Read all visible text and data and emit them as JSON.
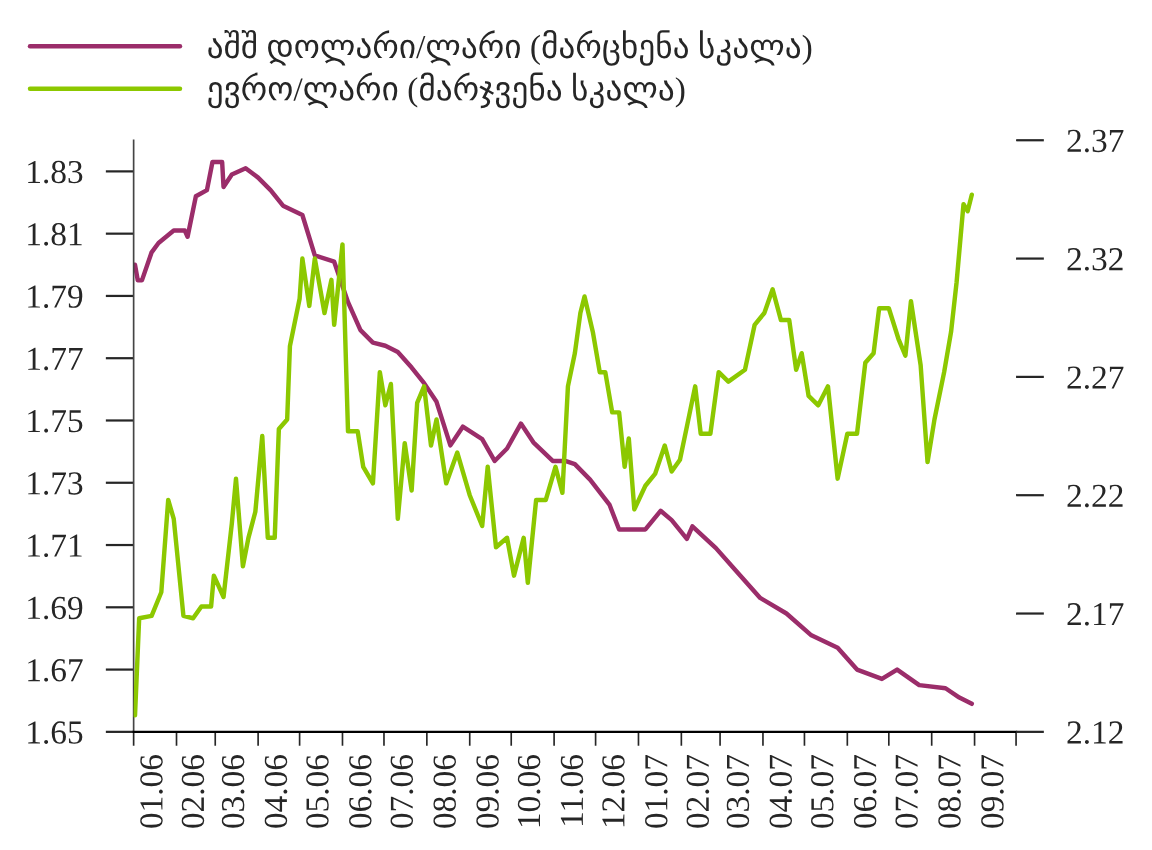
{
  "chart_data": {
    "type": "line",
    "legend": "top left",
    "xlim": [
      "2006-01-01",
      "2007-10-01"
    ],
    "xticks": [
      {
        "value": "2006-01-01",
        "label": null
      },
      {
        "value": "2006-01-16",
        "label": "01.06"
      },
      {
        "value": "2006-02-01",
        "label": null
      },
      {
        "value": "2006-02-15",
        "label": "02.06"
      },
      {
        "value": "2006-03-01",
        "label": null
      },
      {
        "value": "2006-03-16",
        "label": "03.06"
      },
      {
        "value": "2006-04-01",
        "label": null
      },
      {
        "value": "2006-04-16",
        "label": "04.06"
      },
      {
        "value": "2006-05-01",
        "label": null
      },
      {
        "value": "2006-05-16",
        "label": "05.06"
      },
      {
        "value": "2006-06-01",
        "label": null
      },
      {
        "value": "2006-06-16",
        "label": "06.06"
      },
      {
        "value": "2006-07-01",
        "label": null
      },
      {
        "value": "2006-07-16",
        "label": "07.06"
      },
      {
        "value": "2006-08-01",
        "label": null
      },
      {
        "value": "2006-08-16",
        "label": "08.06"
      },
      {
        "value": "2006-09-01",
        "label": null
      },
      {
        "value": "2006-09-16",
        "label": "09.06"
      },
      {
        "value": "2006-10-01",
        "label": null
      },
      {
        "value": "2006-10-16",
        "label": "10.06"
      },
      {
        "value": "2006-11-01",
        "label": null
      },
      {
        "value": "2006-11-16",
        "label": "11.06"
      },
      {
        "value": "2006-12-01",
        "label": null
      },
      {
        "value": "2006-12-16",
        "label": "12.06"
      },
      {
        "value": "2007-01-01",
        "label": null
      },
      {
        "value": "2007-01-16",
        "label": "01.07"
      },
      {
        "value": "2007-02-01",
        "label": null
      },
      {
        "value": "2007-02-15",
        "label": "02.07"
      },
      {
        "value": "2007-03-01",
        "label": null
      },
      {
        "value": "2007-03-16",
        "label": "03.07"
      },
      {
        "value": "2007-04-01",
        "label": null
      },
      {
        "value": "2007-04-16",
        "label": "04.07"
      },
      {
        "value": "2007-05-01",
        "label": null
      },
      {
        "value": "2007-05-16",
        "label": "05.07"
      },
      {
        "value": "2007-06-01",
        "label": null
      },
      {
        "value": "2007-06-16",
        "label": "06.07"
      },
      {
        "value": "2007-07-01",
        "label": null
      },
      {
        "value": "2007-07-16",
        "label": "07.07"
      },
      {
        "value": "2007-08-01",
        "label": null
      },
      {
        "value": "2007-08-16",
        "label": "08.07"
      },
      {
        "value": "2007-09-01",
        "label": null
      },
      {
        "value": "2007-09-16",
        "label": "09.07"
      },
      {
        "value": "2007-10-01",
        "label": null
      }
    ],
    "ylim": [
      1.65,
      1.84
    ],
    "yticks": [
      1.65,
      1.67,
      1.69,
      1.71,
      1.73,
      1.75,
      1.77,
      1.79,
      1.81,
      1.83
    ],
    "y2lim": [
      2.12,
      2.37
    ],
    "y2ticks": [
      2.12,
      2.17,
      2.22,
      2.27,
      2.32,
      2.37
    ],
    "series": [
      {
        "name": "აშშ დოლარი/ლარი (მარცხენა სკალა)",
        "color": "#9b2d6a",
        "x": [
          "2006-01-02",
          "2006-01-04",
          "2006-01-07",
          "2006-01-14",
          "2006-01-19",
          "2006-01-30",
          "2006-02-07",
          "2006-02-09",
          "2006-02-15",
          "2006-02-23",
          "2006-02-27",
          "2006-03-06",
          "2006-03-07",
          "2006-03-13",
          "2006-03-23",
          "2006-04-01",
          "2006-04-10",
          "2006-04-19",
          "2006-05-03",
          "2006-05-12",
          "2006-05-26",
          "2006-06-05",
          "2006-06-14",
          "2006-06-23",
          "2006-07-02",
          "2006-07-11",
          "2006-07-21",
          "2006-07-30",
          "2006-08-08",
          "2006-08-18",
          "2006-08-27",
          "2006-09-10",
          "2006-09-19",
          "2006-09-28",
          "2006-10-08",
          "2006-10-17",
          "2006-10-31",
          "2006-11-09",
          "2006-11-16",
          "2006-11-27",
          "2006-12-11",
          "2006-12-18",
          "2007-01-06",
          "2007-01-17",
          "2007-01-25",
          "2007-02-05",
          "2007-02-09",
          "2007-02-26",
          "2007-03-12",
          "2007-03-30",
          "2007-04-18",
          "2007-05-06",
          "2007-05-25",
          "2007-06-08",
          "2007-06-26",
          "2007-07-07",
          "2007-07-23",
          "2007-08-11",
          "2007-08-21",
          "2007-08-30"
        ],
        "values": [
          1.8,
          1.795,
          1.795,
          1.804,
          1.807,
          1.811,
          1.811,
          1.809,
          1.822,
          1.824,
          1.833,
          1.833,
          1.825,
          1.829,
          1.831,
          1.828,
          1.824,
          1.819,
          1.816,
          1.803,
          1.801,
          1.788,
          1.779,
          1.775,
          1.774,
          1.772,
          1.767,
          1.762,
          1.756,
          1.742,
          1.748,
          1.744,
          1.737,
          1.741,
          1.749,
          1.743,
          1.737,
          1.737,
          1.736,
          1.731,
          1.723,
          1.715,
          1.715,
          1.721,
          1.718,
          1.712,
          1.716,
          1.709,
          1.702,
          1.693,
          1.688,
          1.681,
          1.677,
          1.67,
          1.667,
          1.67,
          1.665,
          1.664,
          1.661,
          1.659
        ]
      },
      {
        "name": "ევრო/ლარი (მარჯვენა სკალა)",
        "color": "#8cc800",
        "axis": "y2",
        "x": [
          "2006-01-02",
          "2006-01-05",
          "2006-01-14",
          "2006-01-21",
          "2006-01-26",
          "2006-01-30",
          "2006-02-06",
          "2006-02-13",
          "2006-02-19",
          "2006-02-26",
          "2006-02-28",
          "2006-03-07",
          "2006-03-13",
          "2006-03-16",
          "2006-03-21",
          "2006-03-25",
          "2006-03-30",
          "2006-04-04",
          "2006-04-08",
          "2006-04-13",
          "2006-04-16",
          "2006-04-22",
          "2006-04-24",
          "2006-05-01",
          "2006-05-03",
          "2006-05-08",
          "2006-05-12",
          "2006-05-19",
          "2006-05-24",
          "2006-05-26",
          "2006-06-01",
          "2006-06-05",
          "2006-06-12",
          "2006-06-16",
          "2006-06-23",
          "2006-06-28",
          "2006-07-02",
          "2006-07-06",
          "2006-07-11",
          "2006-07-16",
          "2006-07-21",
          "2006-07-25",
          "2006-07-30",
          "2006-08-04",
          "2006-08-08",
          "2006-08-15",
          "2006-08-23",
          "2006-09-01",
          "2006-09-10",
          "2006-09-14",
          "2006-09-20",
          "2006-09-28",
          "2006-10-03",
          "2006-10-10",
          "2006-10-13",
          "2006-10-19",
          "2006-10-26",
          "2006-11-02",
          "2006-11-07",
          "2006-11-11",
          "2006-11-16",
          "2006-11-20",
          "2006-11-23",
          "2006-11-29",
          "2006-12-04",
          "2006-12-08",
          "2006-12-13",
          "2006-12-18",
          "2006-12-22",
          "2006-12-25",
          "2006-12-29",
          "2007-01-06",
          "2007-01-13",
          "2007-01-20",
          "2007-01-25",
          "2007-01-31",
          "2007-02-05",
          "2007-02-11",
          "2007-02-15",
          "2007-02-22",
          "2007-02-28",
          "2007-03-07",
          "2007-03-19",
          "2007-03-26",
          "2007-04-02",
          "2007-04-08",
          "2007-04-14",
          "2007-04-20",
          "2007-04-25",
          "2007-04-29",
          "2007-05-04",
          "2007-05-11",
          "2007-05-18",
          "2007-05-25",
          "2007-06-01",
          "2007-06-08",
          "2007-06-14",
          "2007-06-20",
          "2007-06-24",
          "2007-07-01",
          "2007-07-08",
          "2007-07-13",
          "2007-07-17",
          "2007-07-24",
          "2007-07-29",
          "2007-08-03",
          "2007-08-10",
          "2007-08-15",
          "2007-08-19",
          "2007-08-24",
          "2007-08-27",
          "2007-08-30"
        ],
        "values": [
          2.127,
          2.168,
          2.169,
          2.179,
          2.218,
          2.21,
          2.169,
          2.168,
          2.173,
          2.173,
          2.186,
          2.177,
          2.208,
          2.227,
          2.19,
          2.202,
          2.213,
          2.245,
          2.202,
          2.202,
          2.248,
          2.252,
          2.283,
          2.303,
          2.32,
          2.3,
          2.32,
          2.297,
          2.311,
          2.292,
          2.326,
          2.247,
          2.247,
          2.232,
          2.225,
          2.272,
          2.258,
          2.267,
          2.21,
          2.242,
          2.222,
          2.259,
          2.266,
          2.241,
          2.252,
          2.225,
          2.238,
          2.22,
          2.207,
          2.232,
          2.198,
          2.202,
          2.186,
          2.202,
          2.183,
          2.218,
          2.218,
          2.232,
          2.221,
          2.266,
          2.28,
          2.297,
          2.304,
          2.289,
          2.272,
          2.272,
          2.255,
          2.255,
          2.232,
          2.244,
          2.214,
          2.224,
          2.229,
          2.241,
          2.23,
          2.235,
          2.249,
          2.266,
          2.246,
          2.246,
          2.272,
          2.268,
          2.273,
          2.292,
          2.297,
          2.307,
          2.294,
          2.294,
          2.273,
          2.28,
          2.262,
          2.258,
          2.266,
          2.227,
          2.246,
          2.246,
          2.276,
          2.28,
          2.299,
          2.299,
          2.286,
          2.279,
          2.302,
          2.275,
          2.234,
          2.252,
          2.272,
          2.289,
          2.31,
          2.343,
          2.34,
          2.347
        ]
      }
    ]
  }
}
